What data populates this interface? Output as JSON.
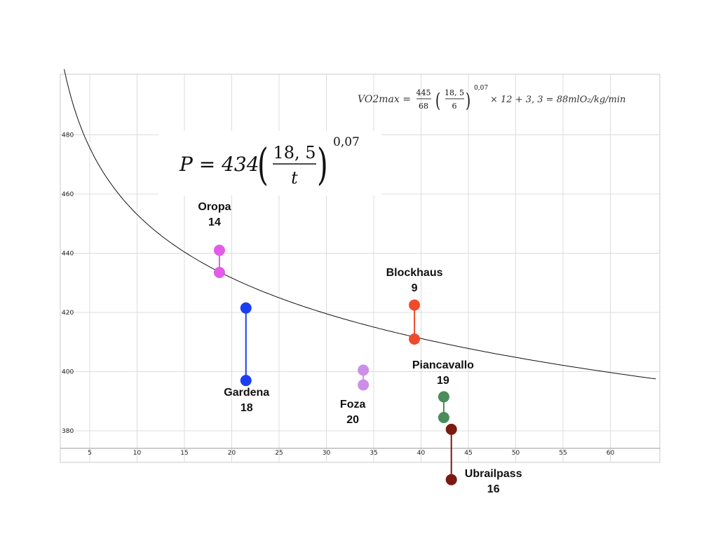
{
  "chart_data": {
    "type": "scatter",
    "xlim": [
      0,
      65
    ],
    "ylim": [
      370,
      497
    ],
    "x_ticks": [
      "5",
      "10",
      "15",
      "20",
      "25",
      "30",
      "35",
      "40",
      "45",
      "50",
      "55",
      "60"
    ],
    "y_ticks": [
      "380",
      "400",
      "420",
      "440",
      "460",
      "480"
    ],
    "grid": true,
    "curve": {
      "coefficient": 434,
      "reference": 18.5,
      "exponent": 0.07
    },
    "formula_main": {
      "lhs": "P = 434",
      "numerator": "18, 5",
      "denominator": "t",
      "exponent": "0,07"
    },
    "formula_vo2": {
      "lhs": "VO2max =",
      "frac_num": "445",
      "frac_den": "68",
      "inner_num": "18, 5",
      "inner_den": "6",
      "exponent": "0,07",
      "rest": "× 12 + 3, 3 = 88mlO₂/kg/min"
    },
    "series": [
      {
        "name": "Oropa",
        "number": "14",
        "color": "#e35ce8",
        "x": 18.7,
        "y_values": [
          441,
          433.5
        ]
      },
      {
        "name": "Gardena",
        "number": "18",
        "color": "#1a3ff2",
        "x": 21.5,
        "y_values": [
          421.5,
          397
        ]
      },
      {
        "name": "Foza",
        "number": "20",
        "color": "#cc8fe8",
        "x": 33.9,
        "y_values": [
          400.5,
          395.5
        ]
      },
      {
        "name": "Blockhaus",
        "number": "9",
        "color": "#ef4a2b",
        "x": 39.3,
        "y_values": [
          422.5,
          411
        ]
      },
      {
        "name": "Piancavallo",
        "number": "19",
        "color": "#4a8c5a",
        "x": 42.4,
        "y_values": [
          391.5,
          384.5
        ]
      },
      {
        "name": "Ubrailpass",
        "number": "16",
        "color": "#7a1a10",
        "x": 43.2,
        "y_values": [
          380.5,
          363.5
        ]
      }
    ]
  }
}
